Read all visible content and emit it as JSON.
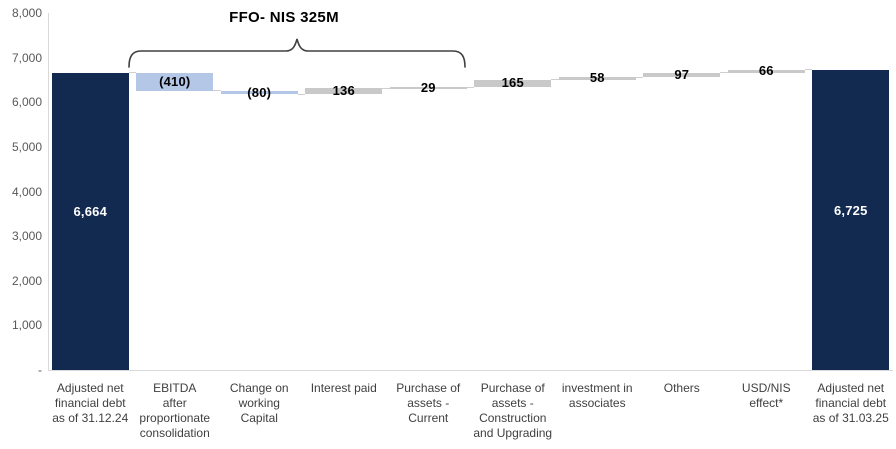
{
  "chart_data": {
    "type": "waterfall",
    "annotation": {
      "text": "FFO- NIS 325M",
      "spans_columns_1_to_4": true
    },
    "ylim": [
      0,
      8000
    ],
    "grid": false,
    "legend": null,
    "y_ticks": [
      {
        "value": 8000,
        "label": "8,000"
      },
      {
        "value": 7000,
        "label": "7,000"
      },
      {
        "value": 6000,
        "label": "6,000"
      },
      {
        "value": 5000,
        "label": "5,000"
      },
      {
        "value": 4000,
        "label": "4,000"
      },
      {
        "value": 3000,
        "label": "3,000"
      },
      {
        "value": 2000,
        "label": "2,000"
      },
      {
        "value": 1000,
        "label": "1,000"
      },
      {
        "value": 0,
        "label": "-"
      }
    ],
    "columns": [
      {
        "category": "Adjusted net\nfinancial debt\nas of 31.12.24",
        "value": 6664,
        "display": "6,664",
        "role": "total"
      },
      {
        "category": "EBITDA\nafter\nproportionate\nconsolidation",
        "value": -410,
        "display": "(410)",
        "role": "decrease"
      },
      {
        "category": "Change on\nworking\nCapital",
        "value": -80,
        "display": "(80)",
        "role": "decrease"
      },
      {
        "category": "Interest paid",
        "value": 136,
        "display": "136",
        "role": "increase"
      },
      {
        "category": "Purchase of\nassets -\nCurrent",
        "value": 29,
        "display": "29",
        "role": "increase"
      },
      {
        "category": "Purchase of\nassets -\nConstruction\nand Upgrading",
        "value": 165,
        "display": "165",
        "role": "increase"
      },
      {
        "category": "investment in\nassociates",
        "value": 58,
        "display": "58",
        "role": "increase"
      },
      {
        "category": "Others",
        "value": 97,
        "display": "97",
        "role": "increase"
      },
      {
        "category": "USD/NIS\neffect*",
        "value": 66,
        "display": "66",
        "role": "increase"
      },
      {
        "category": "Adjusted net\nfinancial debt\nas of 31.03.25",
        "value": 6725,
        "display": "6,725",
        "role": "total"
      }
    ],
    "colors": {
      "total": "#122A50",
      "decrease": "#B4C7E7",
      "increase": "#C9C9C9",
      "connector": "#D0CECE",
      "axis": "#D9D9D9",
      "tick_text": "#595959",
      "category_text": "#404040",
      "value_text": "#000000",
      "value_text_on_total": "#FFFFFF",
      "bracket": "#404040"
    }
  }
}
